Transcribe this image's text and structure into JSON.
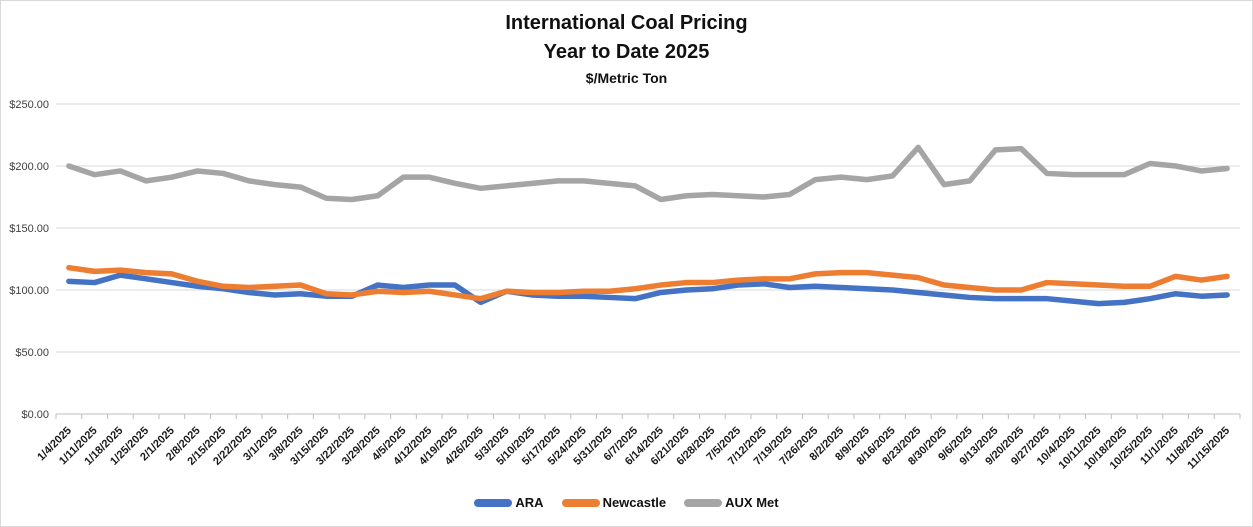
{
  "title": {
    "line1": "International Coal Pricing",
    "line2": "Year to Date 2025",
    "subtitle": "$/Metric Ton"
  },
  "colors": {
    "gridline": "#d9d9d9",
    "axis_line": "#bfbfbf",
    "y_label": "#404040",
    "x_label": "#1a1a1a"
  },
  "chart_data": {
    "type": "line",
    "title": "International Coal Pricing Year to Date 2025",
    "ylabel": "$/Metric Ton",
    "ylim": [
      0,
      250
    ],
    "ytick_step": 50,
    "ytick_labels": [
      "$0.00",
      "$50.00",
      "$100.00",
      "$150.00",
      "$200.00",
      "$250.00"
    ],
    "grid": true,
    "legend_position": "bottom",
    "x": [
      "1/4/2025",
      "1/11/2025",
      "1/18/2025",
      "1/25/2025",
      "2/1/2025",
      "2/8/2025",
      "2/15/2025",
      "2/22/2025",
      "3/1/2025",
      "3/8/2025",
      "3/15/2025",
      "3/22/2025",
      "3/29/2025",
      "4/5/2025",
      "4/12/2025",
      "4/19/2025",
      "4/26/2025",
      "5/3/2025",
      "5/10/2025",
      "5/17/2025",
      "5/24/2025",
      "5/31/2025",
      "6/7/2025",
      "6/14/2025",
      "6/21/2025",
      "6/28/2025",
      "7/5/2025",
      "7/12/2025",
      "7/19/2025",
      "7/26/2025",
      "8/2/2025",
      "8/9/2025",
      "8/16/2025",
      "8/23/2025",
      "8/30/2025",
      "9/6/2025",
      "9/13/2025",
      "9/20/2025",
      "9/27/2025",
      "10/4/2025",
      "10/11/2025",
      "10/18/2025",
      "10/25/2025",
      "11/1/2025",
      "11/8/2025",
      "11/15/2025"
    ],
    "series": [
      {
        "name": "ARA",
        "color": "#4472c4",
        "values": [
          107,
          106,
          112,
          109,
          106,
          103,
          101,
          98,
          96,
          97,
          95,
          95,
          104,
          102,
          104,
          104,
          90,
          99,
          96,
          95,
          95,
          94,
          93,
          98,
          100,
          101,
          104,
          105,
          102,
          103,
          102,
          101,
          100,
          98,
          96,
          94,
          93,
          93,
          93,
          91,
          89,
          90,
          93,
          97,
          95,
          96
        ]
      },
      {
        "name": "Newcastle",
        "color": "#ed7d31",
        "values": [
          118,
          115,
          116,
          114,
          113,
          107,
          103,
          102,
          103,
          104,
          97,
          96,
          99,
          98,
          99,
          96,
          93,
          99,
          98,
          98,
          99,
          99,
          101,
          104,
          106,
          106,
          108,
          109,
          109,
          113,
          114,
          114,
          112,
          110,
          104,
          102,
          100,
          100,
          106,
          105,
          104,
          103,
          103,
          111,
          108,
          111
        ]
      },
      {
        "name": "AUX Met",
        "color": "#a5a5a5",
        "values": [
          200,
          193,
          196,
          188,
          191,
          196,
          194,
          188,
          185,
          183,
          174,
          173,
          176,
          191,
          191,
          186,
          182,
          184,
          186,
          188,
          188,
          186,
          184,
          173,
          176,
          177,
          176,
          175,
          177,
          189,
          191,
          189,
          192,
          215,
          185,
          188,
          213,
          214,
          194,
          193,
          193,
          193,
          202,
          200,
          196,
          198
        ]
      }
    ]
  }
}
